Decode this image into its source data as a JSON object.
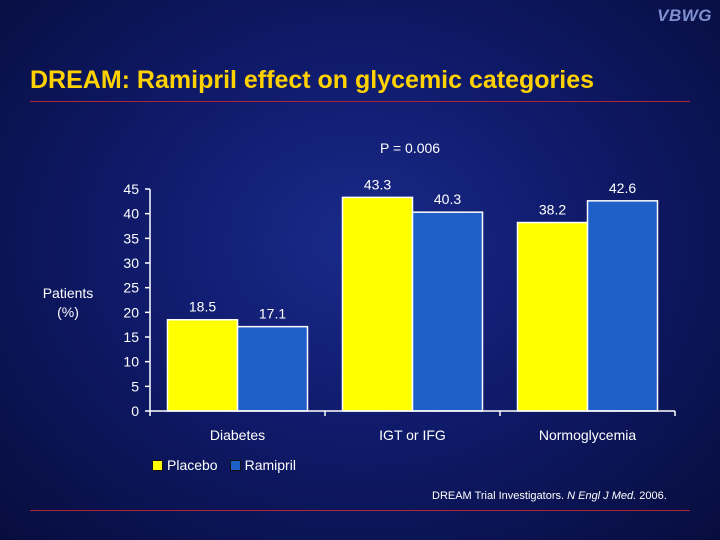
{
  "logo": "VBWG",
  "title": "DREAM: Ramipril effect on glycemic categories",
  "p_value": "P = 0.006",
  "ylabel_line1": "Patients",
  "ylabel_line2": "(%)",
  "citation": {
    "authors": "DREAM Trial Investigators.",
    "journal": "N Engl J Med.",
    "year": "2006."
  },
  "colors": {
    "placebo": "#ffff00",
    "ramipril": "#1f5fc8"
  },
  "chart_data": {
    "type": "bar",
    "categories": [
      "Diabetes",
      "IGT or IFG",
      "Normoglycemia"
    ],
    "series": [
      {
        "name": "Placebo",
        "values": [
          18.5,
          43.3,
          38.2
        ]
      },
      {
        "name": "Ramipril",
        "values": [
          17.1,
          40.3,
          42.6
        ]
      }
    ],
    "value_labels": [
      [
        "18.5",
        "43.3",
        "38.2"
      ],
      [
        "17.1",
        "40.3",
        "42.6"
      ]
    ],
    "ylabel": "Patients (%)",
    "ylim": [
      0,
      45
    ],
    "yticks": [
      "0",
      "5",
      "10",
      "15",
      "20",
      "25",
      "30",
      "35",
      "40",
      "45"
    ],
    "grid": false,
    "legend": "bottom-left"
  }
}
